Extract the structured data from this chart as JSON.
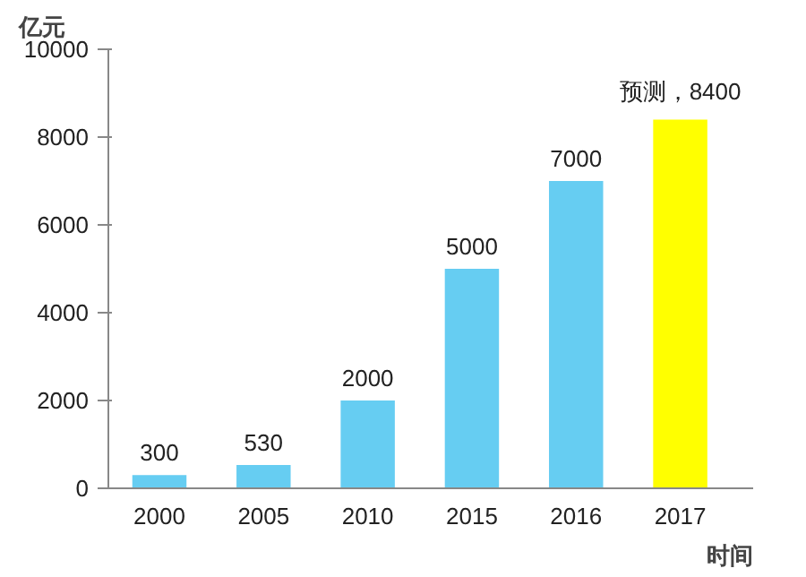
{
  "chart_data": {
    "type": "bar",
    "xlabel": "时间",
    "ylabel": "亿元",
    "categories": [
      "2000",
      "2005",
      "2010",
      "2015",
      "2016",
      "2017"
    ],
    "values": [
      300,
      530,
      2000,
      5000,
      7000,
      8400
    ],
    "colors": [
      "#66cdf2",
      "#66cdf2",
      "#66cdf2",
      "#66cdf2",
      "#66cdf2",
      "#ffff00"
    ],
    "value_labels": [
      "300",
      "530",
      "2000",
      "5000",
      "7000",
      "预测，8400"
    ],
    "ylim": [
      0,
      10000
    ],
    "yticks": [
      0,
      2000,
      4000,
      6000,
      8000,
      10000
    ],
    "grid": false
  }
}
